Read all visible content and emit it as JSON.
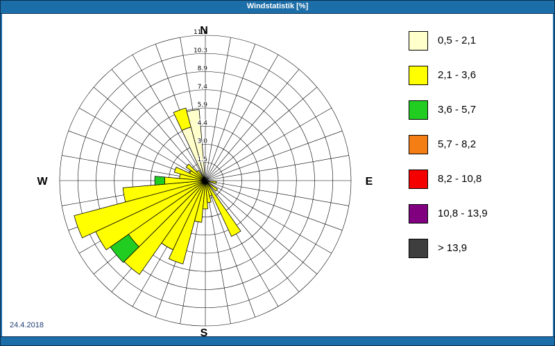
{
  "header": {
    "title": "Windstatistik [%]"
  },
  "compass": {
    "north": "N",
    "east": "E",
    "south": "S",
    "west": "W"
  },
  "footer": {
    "date": "24.4.2018"
  },
  "colors": {
    "titlebar_blue": "#1c6ea8",
    "frame_line": "#0d3050",
    "date_text": "#1f3b73"
  },
  "chart_data": {
    "type": "wind-rose",
    "title": "Windstatistik [%]",
    "units": "%",
    "r_max": 11.8,
    "radial_tick_labels": [
      "1.5",
      "3.0",
      "4.4",
      "5.9",
      "7.4",
      "8.9",
      "10.3",
      "11.8"
    ],
    "sector_width_deg": 10,
    "grid": {
      "rings": 8,
      "spokes_deg": 10,
      "visible": true
    },
    "legend_position": "right",
    "speed_classes": [
      {
        "label": "0,5 - 2,1",
        "color": "#FFFFCB"
      },
      {
        "label": "2,1 - 3,6",
        "color": "#FFFF00"
      },
      {
        "label": "3,6 - 5,7",
        "color": "#22CD22"
      },
      {
        "label": "5,7 - 8,2",
        "color": "#F57E14"
      },
      {
        "label": "8,2 - 10,8",
        "color": "#F40000"
      },
      {
        "label": "10,8 - 13,9",
        "color": "#800080"
      },
      {
        "label": "> 13,9",
        "color": "#3E3E3E"
      }
    ],
    "bars": [
      {
        "dir_deg": 100,
        "values": [
          0,
          0.9,
          0,
          0,
          0,
          0,
          0
        ]
      },
      {
        "dir_deg": 130,
        "values": [
          0,
          1.2,
          0,
          0,
          0,
          0,
          0
        ]
      },
      {
        "dir_deg": 150,
        "values": [
          0,
          5.0,
          0,
          0,
          0,
          0,
          0
        ]
      },
      {
        "dir_deg": 160,
        "values": [
          0,
          1.3,
          0,
          0,
          0,
          0,
          0
        ]
      },
      {
        "dir_deg": 170,
        "values": [
          0,
          1.8,
          0,
          0,
          0,
          0,
          0
        ]
      },
      {
        "dir_deg": 180,
        "values": [
          0,
          2.3,
          0,
          0,
          0,
          0,
          0
        ]
      },
      {
        "dir_deg": 190,
        "values": [
          0,
          3.4,
          0,
          0,
          0,
          0,
          0
        ]
      },
      {
        "dir_deg": 200,
        "values": [
          0,
          7.0,
          0,
          0,
          0,
          0,
          0
        ]
      },
      {
        "dir_deg": 210,
        "values": [
          0,
          6.2,
          0,
          0,
          0,
          0,
          0
        ]
      },
      {
        "dir_deg": 220,
        "values": [
          0,
          9.3,
          0,
          0,
          0,
          0,
          0
        ]
      },
      {
        "dir_deg": 230,
        "values": [
          0,
          7.6,
          1.8,
          0,
          0,
          0,
          0
        ]
      },
      {
        "dir_deg": 240,
        "values": [
          0,
          9.8,
          0,
          0,
          0,
          0,
          0
        ]
      },
      {
        "dir_deg": 250,
        "values": [
          0,
          11.0,
          0,
          0,
          0,
          0,
          0
        ]
      },
      {
        "dir_deg": 260,
        "values": [
          0,
          6.7,
          0,
          0,
          0,
          0,
          0
        ]
      },
      {
        "dir_deg": 270,
        "values": [
          0,
          3.3,
          0.8,
          0,
          0,
          0,
          0
        ]
      },
      {
        "dir_deg": 280,
        "values": [
          0,
          2.1,
          0,
          0,
          0,
          0,
          0
        ]
      },
      {
        "dir_deg": 290,
        "values": [
          0,
          2.6,
          0,
          0,
          0,
          0,
          0
        ]
      },
      {
        "dir_deg": 300,
        "values": [
          0,
          1.4,
          0,
          0,
          0,
          0,
          0
        ]
      },
      {
        "dir_deg": 310,
        "values": [
          0,
          1.9,
          0,
          0,
          0,
          0,
          0
        ]
      },
      {
        "dir_deg": 320,
        "values": [
          0,
          1.0,
          0,
          0,
          0,
          0,
          0
        ]
      },
      {
        "dir_deg": 340,
        "values": [
          4.5,
          1.6,
          0,
          0,
          0,
          0,
          0
        ]
      },
      {
        "dir_deg": 350,
        "values": [
          5.8,
          0,
          0,
          0,
          0,
          0,
          0
        ]
      }
    ]
  }
}
